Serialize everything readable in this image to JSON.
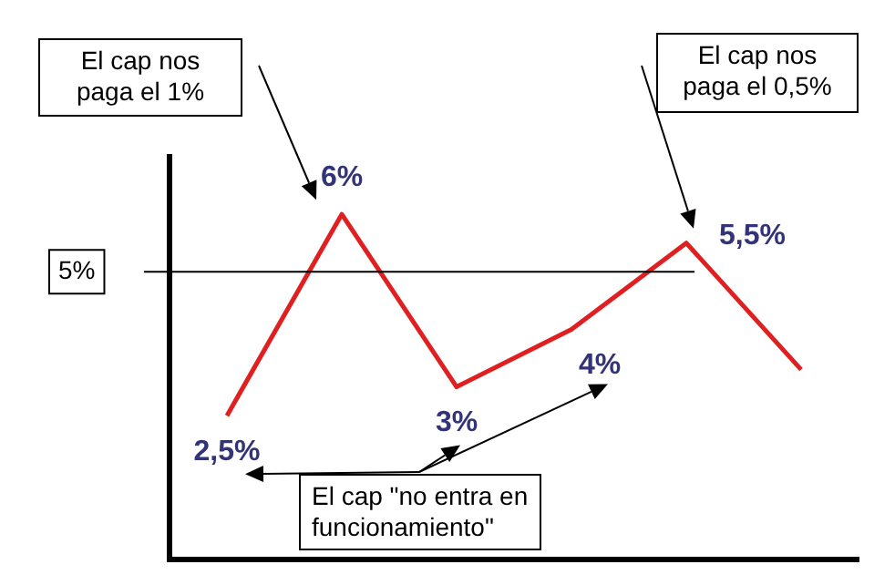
{
  "chart_data": {
    "type": "line",
    "categories": [
      null,
      null,
      null,
      null,
      null,
      null
    ],
    "values": [
      2.5,
      6,
      3,
      4,
      5.5,
      3.3
    ],
    "value_labels": [
      "2,5%",
      "6%",
      "3%",
      "4%",
      "5,5%",
      null
    ],
    "color": "#e02020",
    "ylim": [
      0,
      7
    ],
    "tick_labels": false,
    "ref_lines": [
      {
        "axis": "y",
        "value": 5,
        "label": "5%",
        "color": "#000000"
      }
    ],
    "annotations": [
      "El cap nos paga el 1%",
      "El cap nos paga el 0,5%",
      "El cap \"no entra en funcionamiento\""
    ]
  }
}
